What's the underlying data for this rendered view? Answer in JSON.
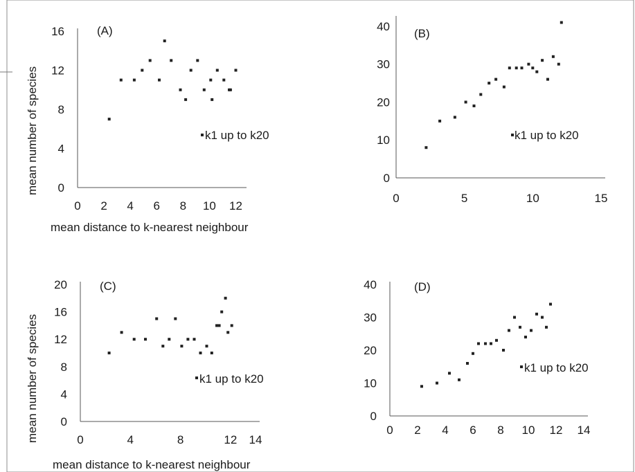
{
  "chart_data": [
    {
      "type": "scatter",
      "panel_label": "(A)",
      "xlabel": "mean distance to k-nearest neighbour",
      "ylabel": "mean number of species",
      "xlim": [
        0,
        12.5
      ],
      "ylim": [
        0,
        16
      ],
      "xticks": [
        "0",
        "2",
        "4",
        "6",
        "8",
        "10",
        "12"
      ],
      "yticks": [
        "0",
        "4",
        "8",
        "12",
        "16"
      ],
      "legend": "k1 up to k20",
      "trendline": "polynomial (cubic)",
      "series": [
        {
          "name": "k1 up to k20",
          "x": [
            2.4,
            3.3,
            4.3,
            4.9,
            5.5,
            6.2,
            6.6,
            7.1,
            7.8,
            8.2,
            8.6,
            9.1,
            9.6,
            10.1,
            10.6,
            11.1,
            11.6,
            12.0,
            10.2,
            11.5
          ],
          "y": [
            7,
            11,
            11,
            12,
            13,
            11,
            15,
            13,
            10,
            9,
            12,
            13,
            10,
            11,
            12,
            11,
            10,
            12,
            9,
            10
          ]
        }
      ]
    },
    {
      "type": "scatter",
      "panel_label": "(B)",
      "xlim": [
        0,
        15
      ],
      "ylim": [
        0,
        42
      ],
      "xticks": [
        "0",
        "5",
        "10",
        "15"
      ],
      "yticks": [
        "0",
        "10",
        "20",
        "30",
        "40"
      ],
      "legend": "k1 up to k20",
      "trendline": "polynomial (quadratic)",
      "series": [
        {
          "name": "k1 up to k20",
          "x": [
            2.2,
            3.2,
            4.3,
            5.1,
            5.7,
            6.2,
            6.8,
            7.3,
            7.9,
            8.3,
            8.8,
            9.2,
            9.7,
            10.0,
            10.3,
            10.7,
            11.1,
            11.5,
            11.9,
            12.1
          ],
          "y": [
            8,
            15,
            16,
            20,
            19,
            22,
            25,
            26,
            24,
            29,
            29,
            29,
            30,
            29,
            28,
            31,
            26,
            32,
            30,
            41
          ]
        }
      ]
    },
    {
      "type": "scatter",
      "panel_label": "(C)",
      "xlabel": "mean distance to k-nearest neighbour",
      "ylabel": "mean number of species",
      "xlim": [
        0,
        14
      ],
      "ylim": [
        0,
        20
      ],
      "xticks": [
        "0",
        "4",
        "8",
        "12",
        "14"
      ],
      "yticks": [
        "0",
        "4",
        "8",
        "12",
        "16",
        "20"
      ],
      "legend": "k1 up to k20",
      "trendline": "polynomial (quadratic)",
      "series": [
        {
          "name": "k1 up to k20",
          "x": [
            2.3,
            3.3,
            4.3,
            5.2,
            6.1,
            6.6,
            7.1,
            7.6,
            8.1,
            8.6,
            9.1,
            9.6,
            10.1,
            10.5,
            10.9,
            11.3,
            11.6,
            11.8,
            12.1,
            11.1
          ],
          "y": [
            10,
            13,
            12,
            12,
            15,
            11,
            12,
            15,
            11,
            12,
            12,
            10,
            11,
            10,
            14,
            16,
            18,
            13,
            14,
            14
          ]
        }
      ]
    },
    {
      "type": "scatter",
      "panel_label": "(D)",
      "xlim": [
        0,
        14
      ],
      "ylim": [
        0,
        40
      ],
      "xticks": [
        "0",
        "2",
        "4",
        "6",
        "8",
        "10",
        "12",
        "14"
      ],
      "yticks": [
        "0",
        "10",
        "20",
        "30",
        "40"
      ],
      "legend": "k1 up to k20",
      "trendline": "linear",
      "series": [
        {
          "name": "k1 up to k20",
          "x": [
            2.3,
            3.4,
            4.3,
            5.0,
            5.6,
            6.0,
            6.4,
            6.9,
            7.3,
            7.7,
            8.2,
            8.6,
            9.0,
            9.4,
            9.8,
            10.2,
            10.6,
            11.0,
            11.3,
            11.6
          ],
          "y": [
            9,
            10,
            13,
            11,
            16,
            19,
            22,
            22,
            22,
            23,
            20,
            26,
            30,
            27,
            24,
            26,
            31,
            30,
            27,
            34
          ]
        }
      ]
    }
  ],
  "colors": {
    "points": "#222222",
    "trendline": "#9a9a9a",
    "frame": "#8c8c8c",
    "axes": "#555555"
  }
}
